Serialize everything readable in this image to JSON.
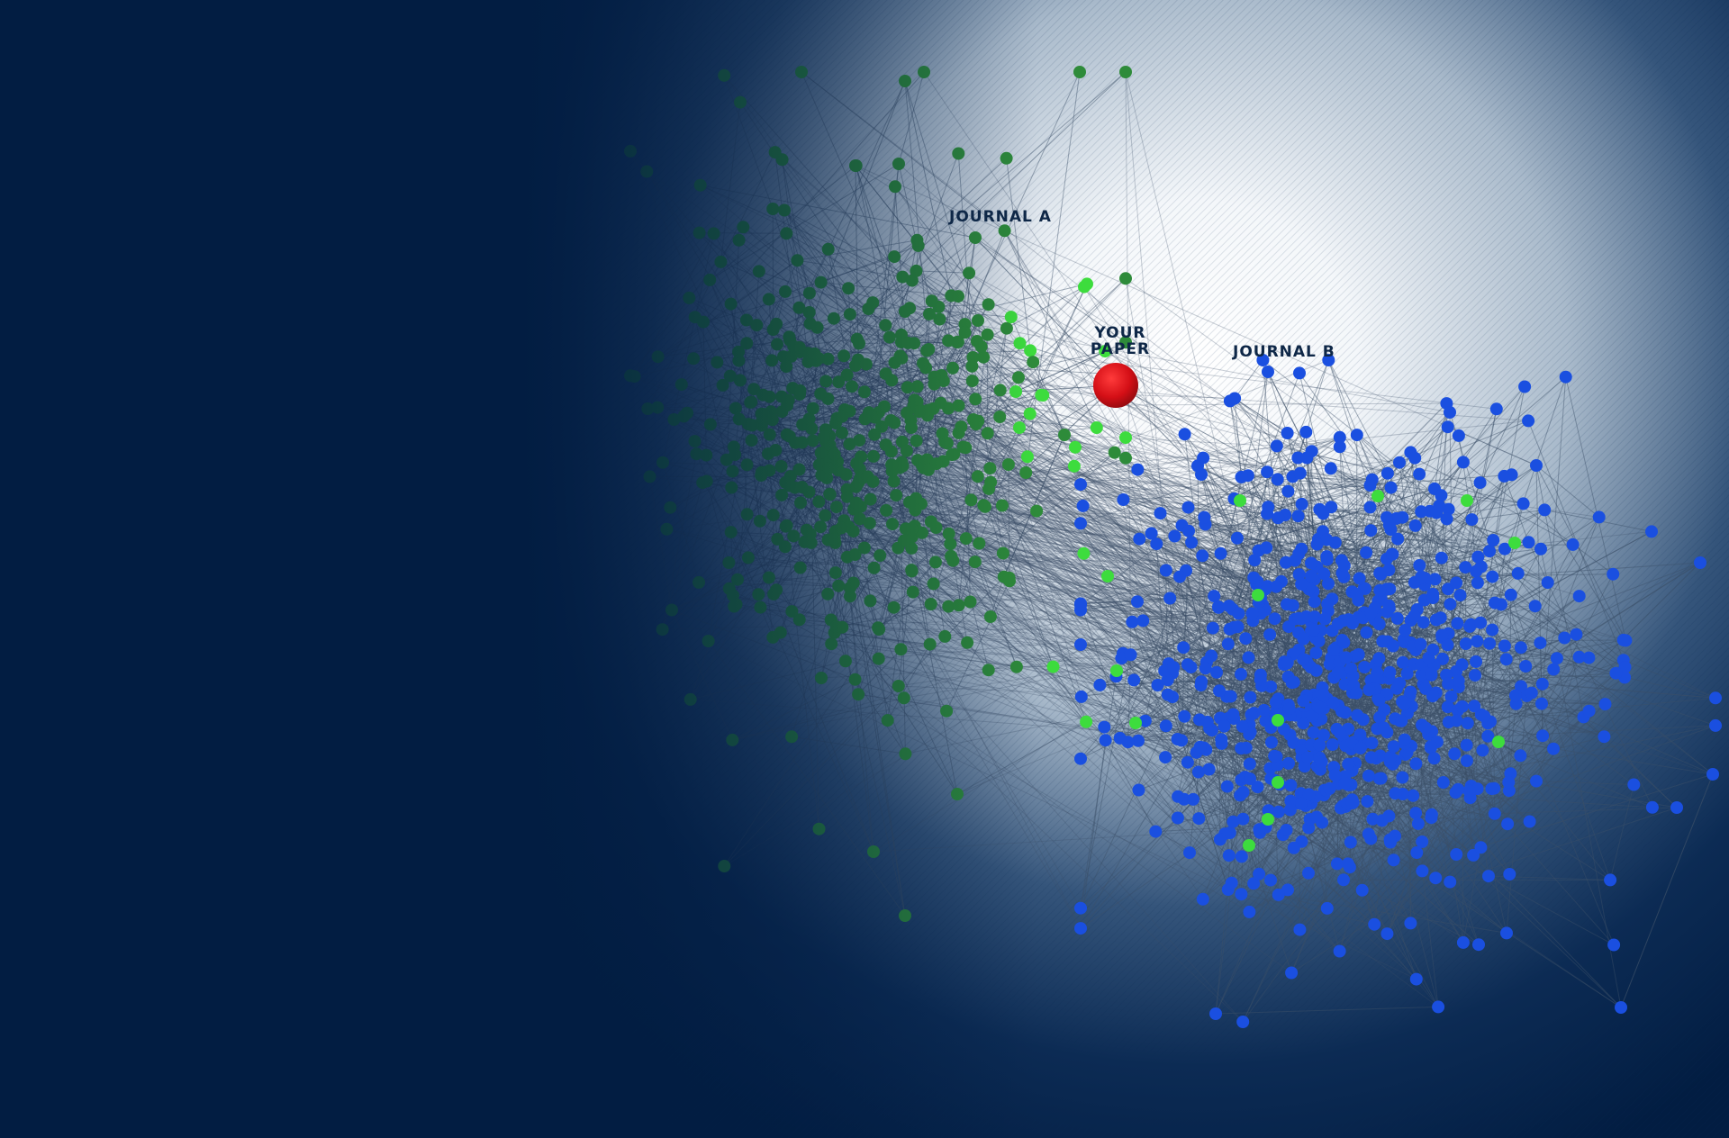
{
  "labels": {
    "journal_a": "JOURNAL A",
    "journal_b": "JOURNAL B",
    "your_paper_line1": "YOUR",
    "your_paper_line2": "PAPER"
  },
  "colors": {
    "background_dark": "#021d42",
    "background_light": "#ffffff",
    "journal_a_nodes": "#2e8b3a",
    "journal_a_highlight": "#3ddc3d",
    "journal_b_nodes": "#1a4fe0",
    "your_paper_node": "#d40f16",
    "edges": "#3c5068",
    "label_text": "#0e2747"
  },
  "nodes": {
    "journal_a_count": 480,
    "journal_b_count": 760
  }
}
